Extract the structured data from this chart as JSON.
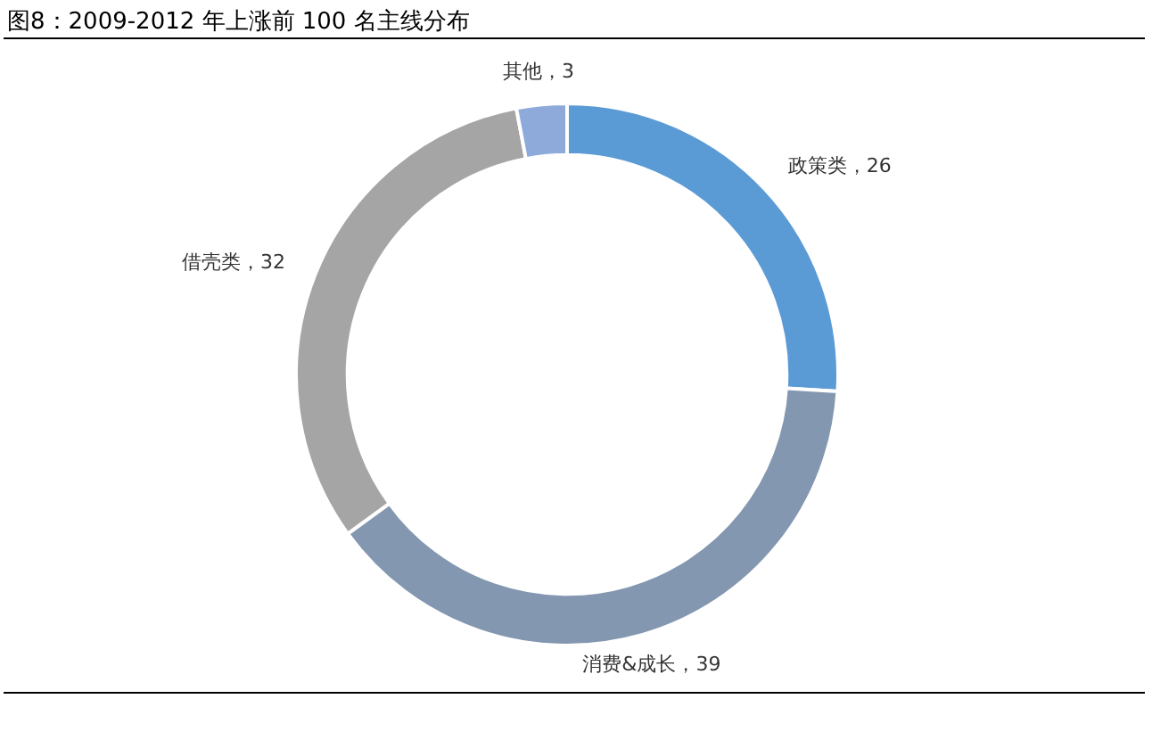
{
  "chart_data": {
    "type": "donut",
    "title": "图8：2009-2012 年上涨前 100 名主线分布",
    "categories": [
      "政策类",
      "消费&成长",
      "借壳类",
      "其他"
    ],
    "values": [
      26,
      39,
      32,
      3
    ],
    "colors": [
      "#5b9bd5",
      "#8497b0",
      "#a5a5a5",
      "#8eaadb"
    ],
    "value_labels": [
      "，26",
      "，39",
      "，32",
      "，3"
    ],
    "legend": false
  }
}
